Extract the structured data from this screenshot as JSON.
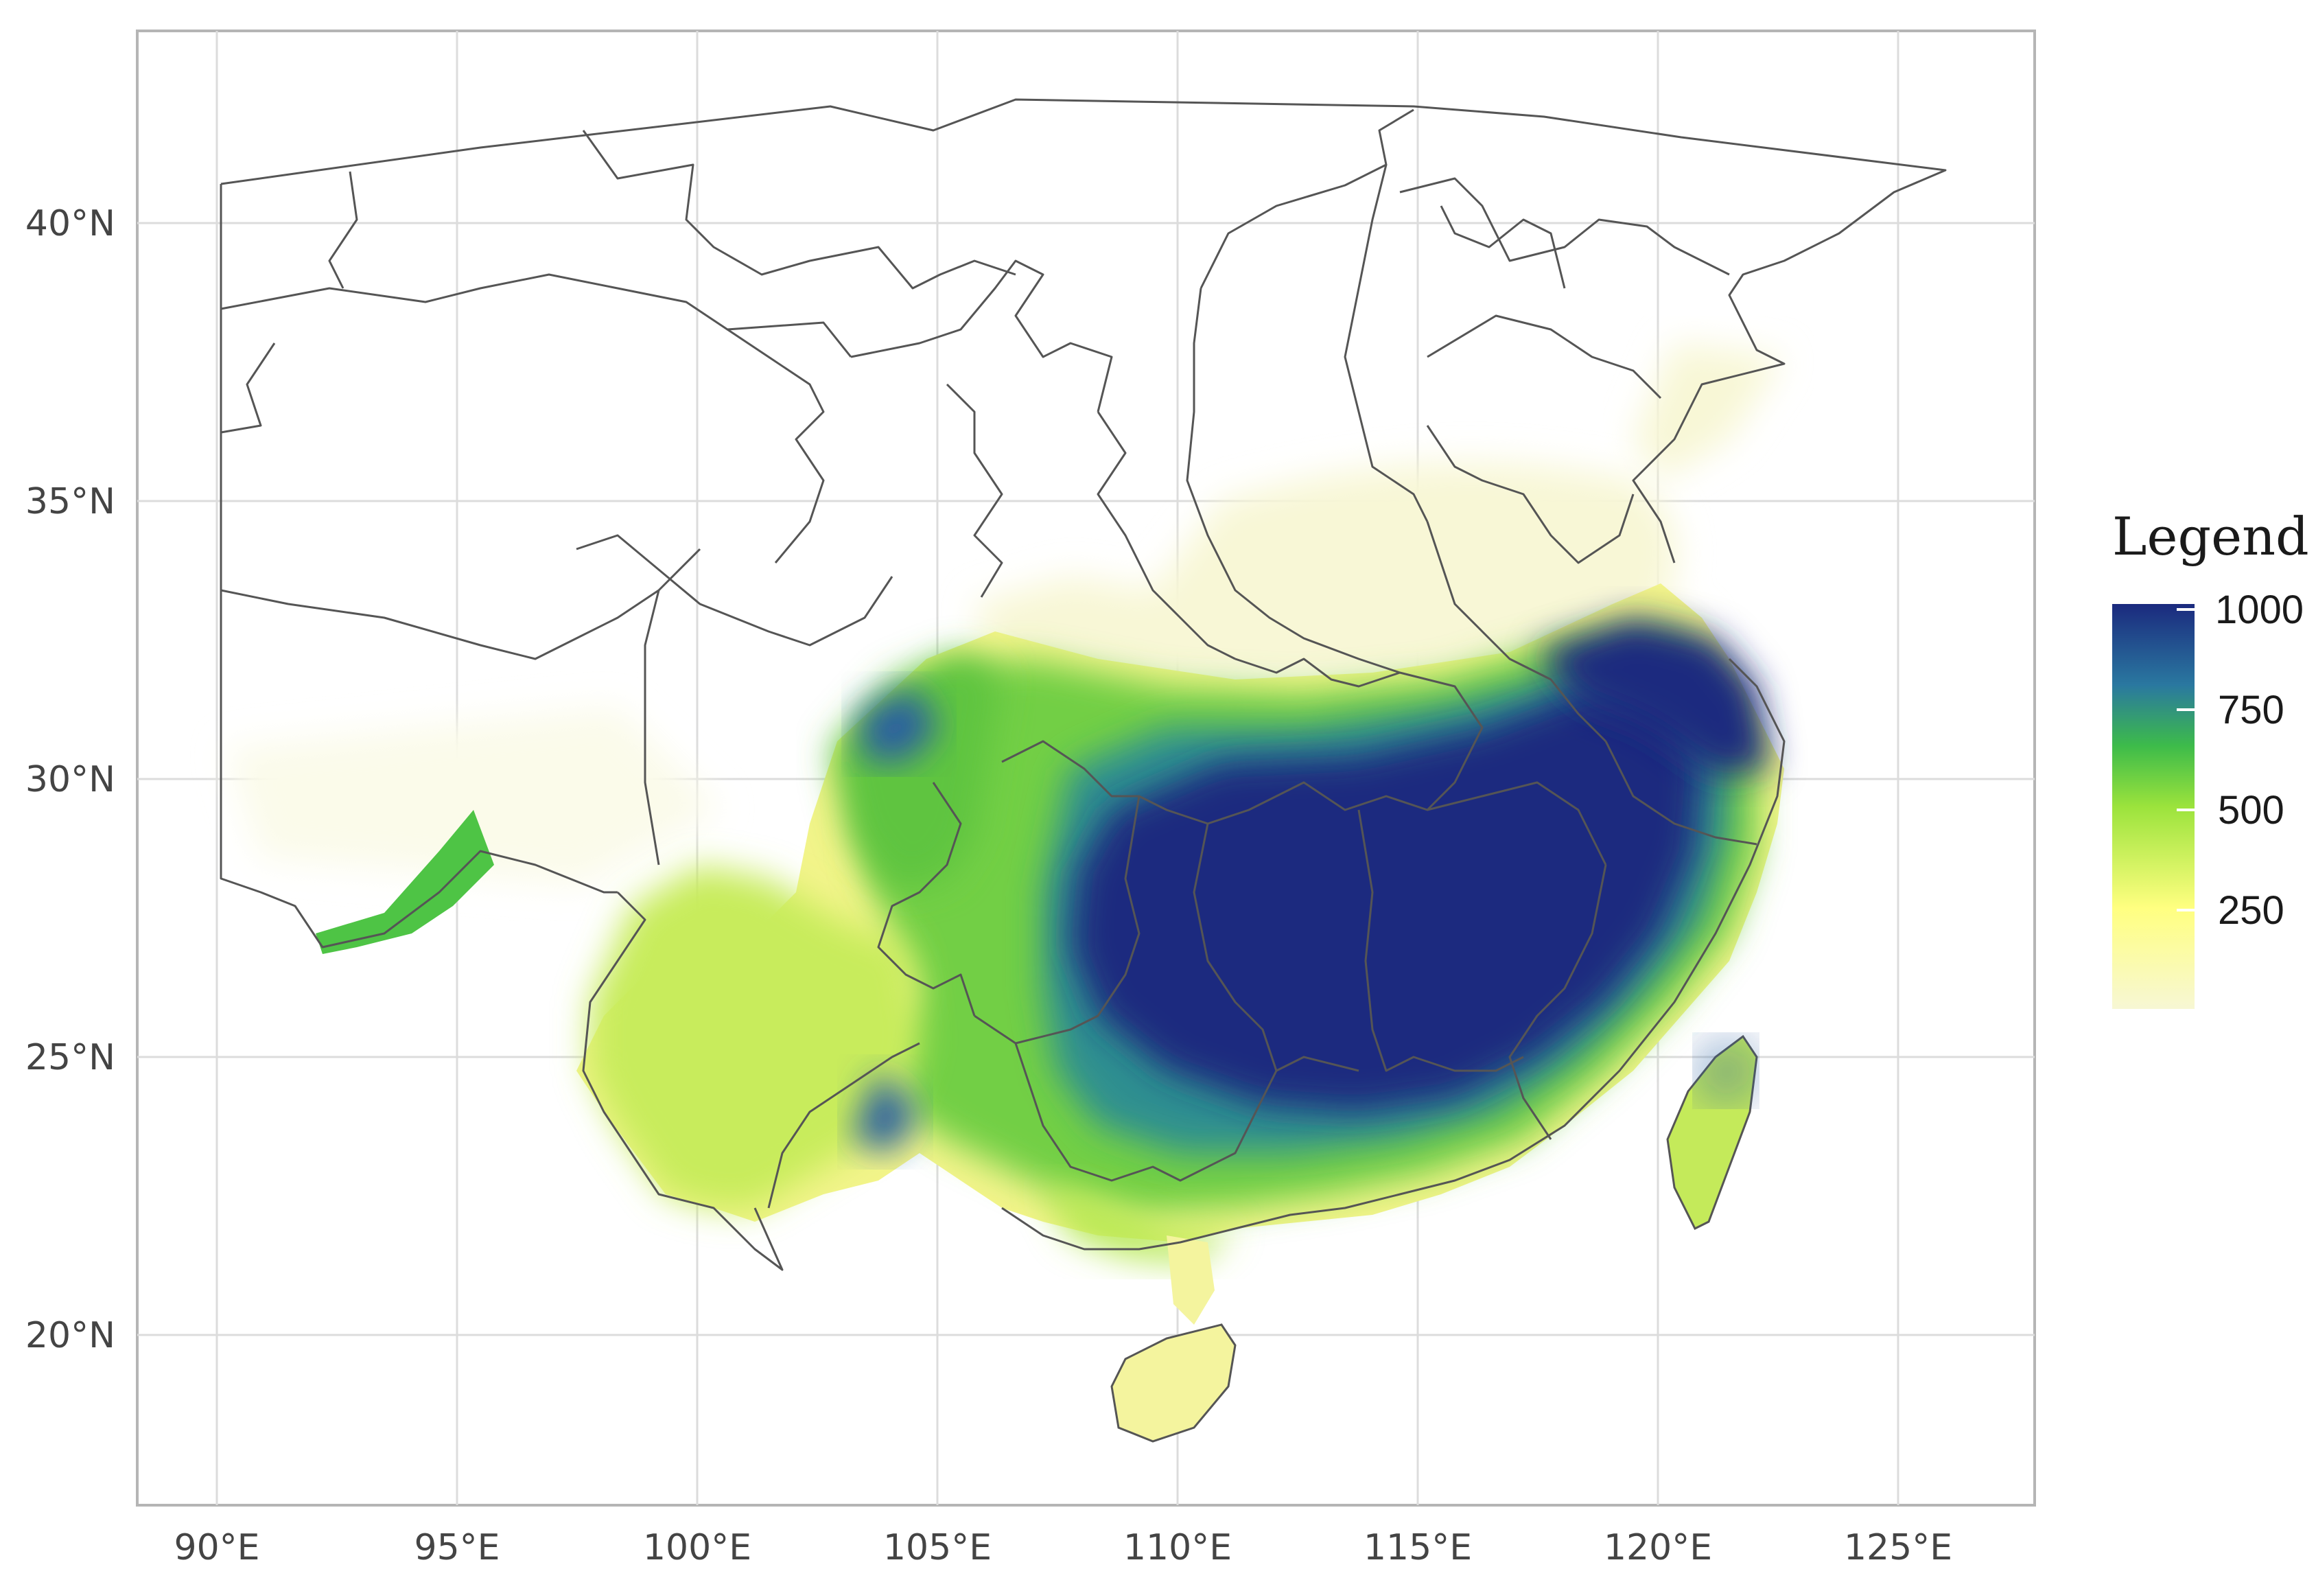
{
  "map": {
    "x_axis": {
      "ticks": [
        "90°E",
        "95°E",
        "100°E",
        "105°E",
        "110°E",
        "115°E",
        "120°E",
        "125°E"
      ]
    },
    "y_axis": {
      "ticks": [
        "40°N",
        "35°N",
        "30°N",
        "25°N",
        "20°N"
      ]
    },
    "legend": {
      "title": "Legend",
      "labels": [
        "1000",
        "750",
        "500",
        "250"
      ],
      "colors": [
        "#f7f7d4",
        "#ffff80",
        "#9be33c",
        "#3dbb4a",
        "#2e8f88",
        "#2a5fa0",
        "#1b2a7e"
      ]
    }
  }
}
